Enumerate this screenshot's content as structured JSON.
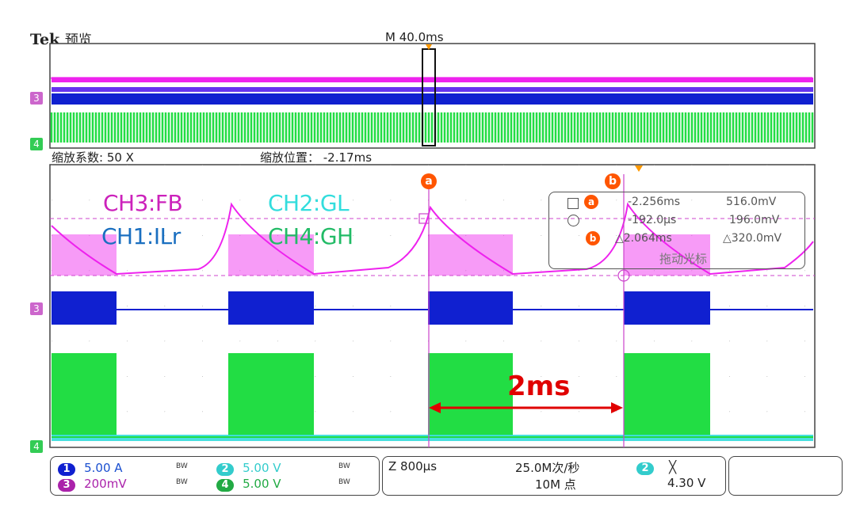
{
  "header": {
    "brand": "Tek",
    "mode": "预览",
    "timebase": "M 40.0ms"
  },
  "zoom": {
    "factor": "缩放系数: 50 X",
    "position": "缩放位置：  -2.17ms"
  },
  "markers": {
    "ch3": "3",
    "ch4": "4"
  },
  "channel_labels": {
    "ch3": "CH3:FB",
    "ch1": "CH1:ILr",
    "ch2": "CH2:GL",
    "ch4": "CH4:GH"
  },
  "cursors": {
    "a": "a",
    "b": "b"
  },
  "measurements": {
    "row1_time": "-2.256ms",
    "row1_volt": "516.0mV",
    "row2_time": "-192.0μs",
    "row2_volt": "196.0mV",
    "row3_time": "△2.064ms",
    "row3_volt": "△320.0mV",
    "footer": "拖动光标"
  },
  "annotation": {
    "interval": "2ms"
  },
  "bottom": {
    "ch1_num": "1",
    "ch1_scale": "5.00 A",
    "ch2_num": "2",
    "ch2_scale": "5.00 V",
    "ch3_num": "3",
    "ch3_scale": "200mV",
    "ch4_num": "4",
    "ch4_scale": "5.00 V",
    "bw": "BW",
    "zoom_scale": "Z 800μs",
    "sample_rate": "25.0M次/秒",
    "record_length": "10M 点",
    "trigger_ch": "2",
    "trigger_level": "4.30 V"
  },
  "colors": {
    "ch1": "#1020d0",
    "ch2": "#33dddd",
    "ch3": "#ee22ee",
    "ch4": "#22dd44",
    "cursor": "#ff5500"
  }
}
